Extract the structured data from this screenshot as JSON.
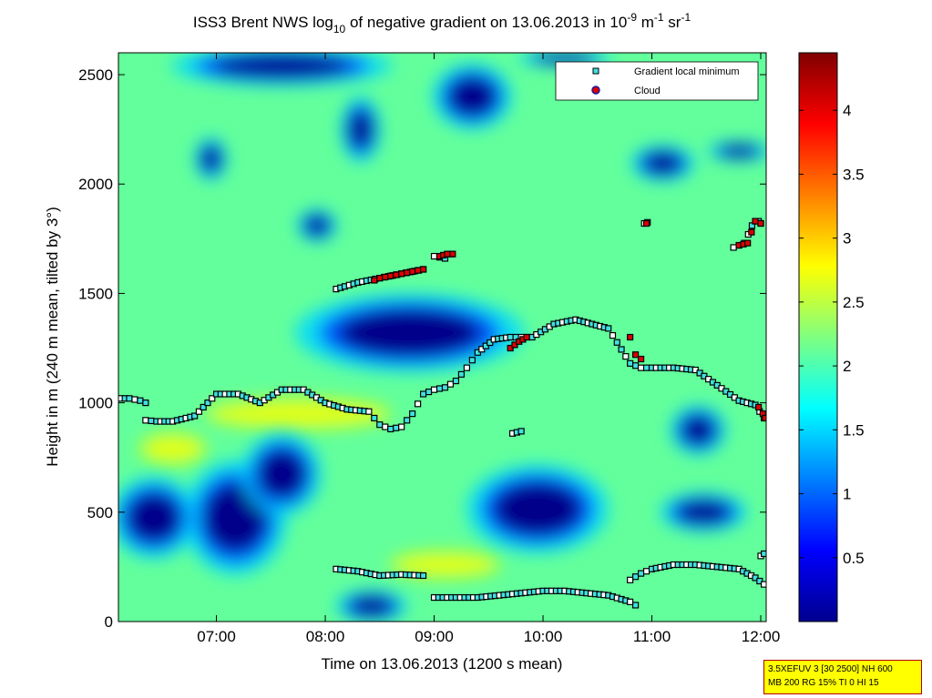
{
  "chart_data": {
    "type": "heatmap",
    "title_parts": {
      "prefix": "ISS3 Brent NWS log",
      "sub": "10",
      "middle": " of negative gradient on 13.06.2013 in 10",
      "sup1": "-9",
      "unit_m": " m",
      "sup2": "-1",
      "unit_sr": " sr",
      "sup3": "-1"
    },
    "xlabel": "Time on 13.06.2013 (1200 s mean)",
    "ylabel": "Height in m (240 m mean, tilted by 3°)",
    "xlim_hours": [
      6.1,
      12.05
    ],
    "ylim": [
      0,
      2600
    ],
    "x_ticks": [
      {
        "h": 7,
        "label": "07:00"
      },
      {
        "h": 8,
        "label": "08:00"
      },
      {
        "h": 9,
        "label": "09:00"
      },
      {
        "h": 10,
        "label": "10:00"
      },
      {
        "h": 11,
        "label": "11:00"
      },
      {
        "h": 12,
        "label": "12:00"
      }
    ],
    "y_ticks": [
      0,
      500,
      1000,
      1500,
      2000,
      2500
    ],
    "y_tick_labels": [
      "0",
      "500",
      "1000",
      "1500",
      "2000",
      "2500"
    ],
    "colorbar": {
      "range": [
        0,
        4.45
      ],
      "ticks": [
        0.5,
        1,
        1.5,
        2,
        2.5,
        3,
        3.5,
        4
      ],
      "tick_labels": [
        "0.5",
        "1",
        "1.5",
        "2",
        "2.5",
        "3",
        "3.5",
        "4"
      ],
      "colormap": "jet"
    },
    "legend": {
      "placement": "top-right",
      "entries": [
        {
          "label": "Gradient local minimum",
          "marker": "square",
          "color": "#40e0e0"
        },
        {
          "label": "Cloud",
          "marker": "circle",
          "color": "#dd0000"
        }
      ]
    },
    "background_value": 2.1,
    "low_regions": [
      {
        "t0": 6.85,
        "t1": 7.5,
        "h0": 300,
        "h1": 650
      },
      {
        "t0": 7.35,
        "t1": 7.85,
        "h0": 550,
        "h1": 800
      },
      {
        "t0": 6.15,
        "t1": 6.7,
        "h0": 350,
        "h1": 600
      },
      {
        "t0": 9.5,
        "t1": 10.4,
        "h0": 380,
        "h1": 650
      },
      {
        "t0": 11.25,
        "t1": 11.6,
        "h0": 800,
        "h1": 950
      },
      {
        "t0": 11.2,
        "t1": 11.75,
        "h0": 440,
        "h1": 560
      },
      {
        "t0": 8.05,
        "t1": 9.5,
        "h0": 1200,
        "h1": 1440
      },
      {
        "t0": 8.2,
        "t1": 8.65,
        "h0": 20,
        "h1": 120
      },
      {
        "t0": 6.9,
        "t1": 8.3,
        "h0": 2480,
        "h1": 2600
      },
      {
        "t0": 8.2,
        "t1": 8.45,
        "h0": 2150,
        "h1": 2350
      },
      {
        "t0": 7.8,
        "t1": 8.05,
        "h0": 1760,
        "h1": 1860
      },
      {
        "t0": 9.1,
        "t1": 9.6,
        "h0": 2300,
        "h1": 2500
      },
      {
        "t0": 9.9,
        "t1": 10.5,
        "h0": 2550,
        "h1": 2600
      },
      {
        "t0": 10.9,
        "t1": 11.3,
        "h0": 2040,
        "h1": 2150
      },
      {
        "t0": 11.6,
        "t1": 12.0,
        "h0": 2120,
        "h1": 2180
      },
      {
        "t0": 6.85,
        "t1": 7.05,
        "h0": 2050,
        "h1": 2180
      }
    ],
    "high_regions": [
      {
        "t0": 6.9,
        "t1": 8.6,
        "h0": 880,
        "h1": 1020
      },
      {
        "t0": 6.3,
        "t1": 6.9,
        "h0": 720,
        "h1": 860
      },
      {
        "t0": 8.6,
        "t1": 9.6,
        "h0": 200,
        "h1": 320
      }
    ],
    "series": [
      {
        "name": "Gradient local minimum",
        "segments": [
          {
            "t": [
              6.12,
              6.2,
              6.3,
              6.35
            ],
            "h": [
              1020,
              1020,
              1010,
              1000
            ]
          },
          {
            "t": [
              6.35,
              6.45,
              6.6,
              6.8,
              7.0,
              7.2,
              7.4,
              7.6,
              7.8,
              8.0,
              8.2,
              8.4,
              8.5,
              8.6,
              8.7,
              8.8,
              8.9,
              9.0,
              9.1,
              9.2,
              9.3,
              9.4,
              9.55,
              9.7,
              9.8,
              9.9,
              10.1,
              10.3,
              10.45,
              10.6,
              10.8,
              10.9,
              11.0,
              11.2,
              11.4,
              11.6,
              11.8,
              11.95,
              12.03
            ],
            "h": [
              920,
              915,
              915,
              940,
              1040,
              1040,
              1000,
              1060,
              1060,
              1000,
              970,
              960,
              900,
              880,
              890,
              950,
              1040,
              1060,
              1070,
              1100,
              1160,
              1230,
              1290,
              1300,
              1300,
              1300,
              1360,
              1380,
              1360,
              1340,
              1180,
              1160,
              1160,
              1160,
              1150,
              1080,
              1010,
              990,
              930
            ]
          },
          {
            "t": [
              8.1,
              8.3,
              8.5,
              8.7,
              8.9
            ],
            "h": [
              1520,
              1550,
              1570,
              1590,
              1610
            ]
          },
          {
            "t": [
              9.0,
              9.1,
              9.15
            ],
            "h": [
              1670,
              1660,
              1680
            ]
          },
          {
            "t": [
              9.72,
              9.8
            ],
            "h": [
              860,
              870
            ]
          },
          {
            "t": [
              10.93,
              10.96
            ],
            "h": [
              1820,
              1825
            ]
          },
          {
            "t": [
              11.75,
              11.85,
              11.92,
              11.98,
              12.0
            ],
            "h": [
              1710,
              1730,
              1810,
              1830,
              1820
            ]
          },
          {
            "t": [
              8.1,
              8.3,
              8.5,
              8.7,
              8.9
            ],
            "h": [
              240,
              230,
              210,
              215,
              210
            ]
          },
          {
            "t": [
              9.0,
              9.2,
              9.4,
              9.6,
              9.8,
              10.0,
              10.2,
              10.4,
              10.6,
              10.8,
              10.85
            ],
            "h": [
              110,
              110,
              110,
              120,
              130,
              140,
              140,
              130,
              120,
              90,
              75
            ]
          },
          {
            "t": [
              10.8,
              10.9,
              11.0,
              11.2,
              11.4,
              11.6,
              11.8,
              11.95,
              12.03
            ],
            "h": [
              190,
              220,
              240,
              260,
              260,
              250,
              240,
              200,
              170
            ]
          },
          {
            "t": [
              12.0,
              12.03
            ],
            "h": [
              300,
              310
            ]
          }
        ]
      },
      {
        "name": "Cloud",
        "segments": [
          {
            "t": [
              8.45,
              8.5,
              8.6,
              8.7,
              8.8,
              8.9
            ],
            "h": [
              1560,
              1570,
              1580,
              1590,
              1600,
              1610
            ]
          },
          {
            "t": [
              9.05,
              9.12,
              9.17
            ],
            "h": [
              1670,
              1680,
              1680
            ]
          },
          {
            "t": [
              9.7,
              9.78,
              9.85
            ],
            "h": [
              1250,
              1280,
              1300
            ]
          },
          {
            "t": [
              10.8,
              10.85,
              10.9
            ],
            "h": [
              1300,
              1220,
              1200
            ]
          },
          {
            "t": [
              10.95
            ],
            "h": [
              1820
            ]
          },
          {
            "t": [
              11.8,
              11.88,
              11.95,
              12.0
            ],
            "h": [
              1720,
              1730,
              1830,
              1820
            ]
          },
          {
            "t": [
              11.98,
              12.02,
              12.04
            ],
            "h": [
              980,
              950,
              930
            ]
          }
        ]
      }
    ]
  },
  "info_box": {
    "line1": "3.5XEFUV 3 [30 2500] NH 600",
    "line2": "MB 200 RG 15% TI 0 HI 15"
  }
}
